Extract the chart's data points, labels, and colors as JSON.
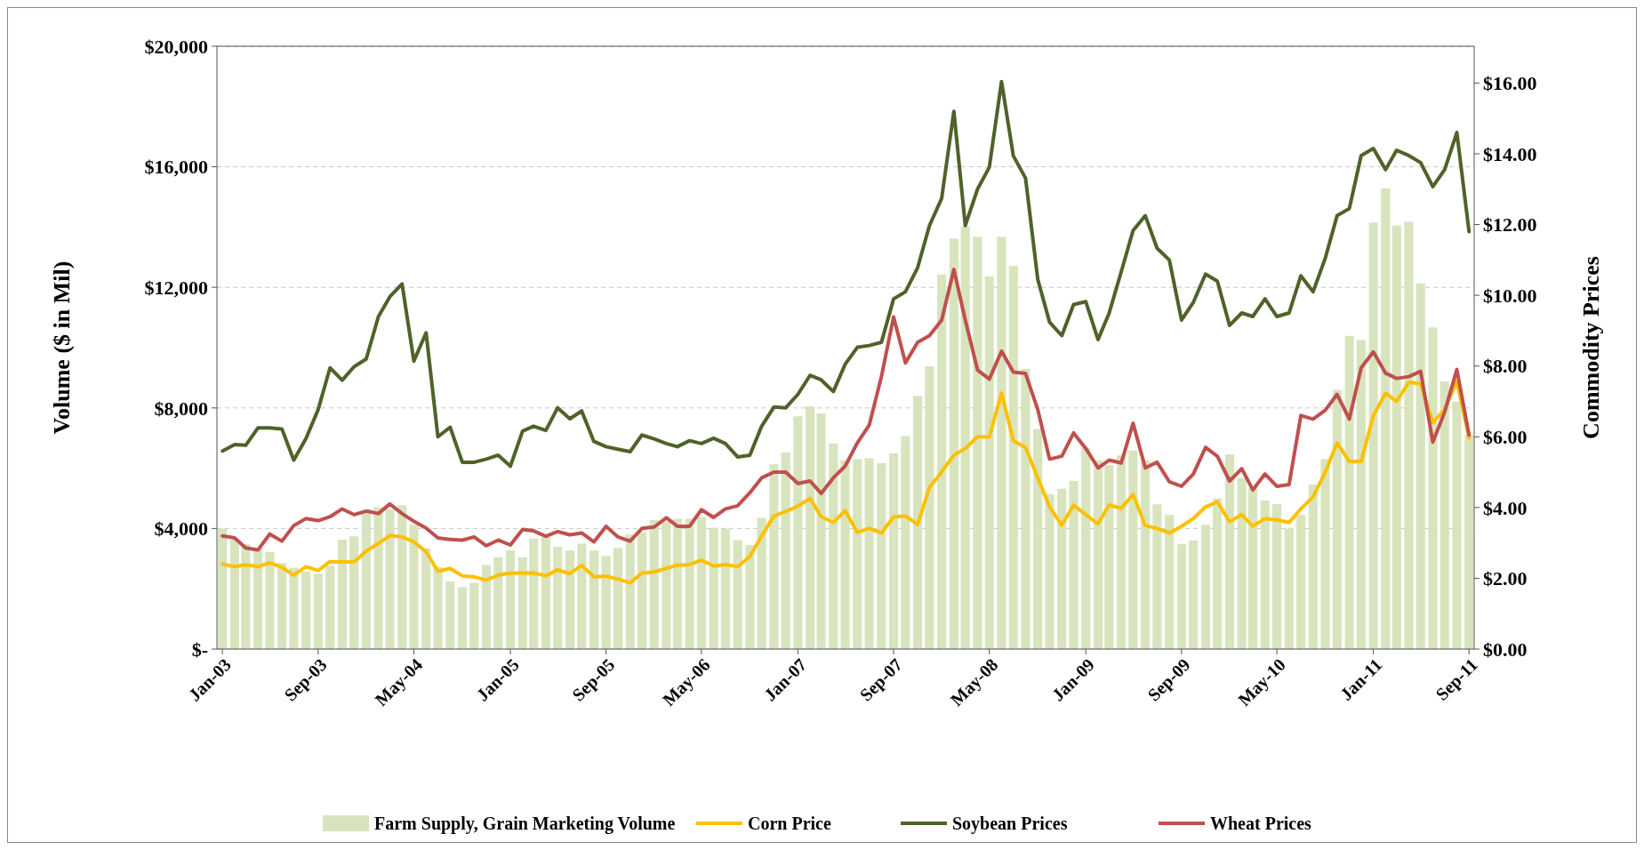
{
  "chart_data": {
    "type": "bar",
    "ylabel": "Volume ($ in Mil)",
    "y2label": "Commodity Prices",
    "x": [
      "2003-01",
      "2003-02",
      "2003-03",
      "2003-04",
      "2003-05",
      "2003-06",
      "2003-07",
      "2003-08",
      "2003-09",
      "2003-10",
      "2003-11",
      "2003-12",
      "2004-01",
      "2004-02",
      "2004-03",
      "2004-04",
      "2004-05",
      "2004-06",
      "2004-07",
      "2004-08",
      "2004-09",
      "2004-10",
      "2004-11",
      "2004-12",
      "2005-01",
      "2005-02",
      "2005-03",
      "2005-04",
      "2005-05",
      "2005-06",
      "2005-07",
      "2005-08",
      "2005-09",
      "2005-10",
      "2005-11",
      "2005-12",
      "2006-01",
      "2006-02",
      "2006-03",
      "2006-04",
      "2006-05",
      "2006-06",
      "2006-07",
      "2006-08",
      "2006-09",
      "2006-10",
      "2006-11",
      "2006-12",
      "2007-01",
      "2007-02",
      "2007-03",
      "2007-04",
      "2007-05",
      "2007-06",
      "2007-07",
      "2007-08",
      "2007-09",
      "2007-10",
      "2007-11",
      "2007-12",
      "2008-01",
      "2008-02",
      "2008-03",
      "2008-04",
      "2008-05",
      "2008-06",
      "2008-07",
      "2008-08",
      "2008-09",
      "2008-10",
      "2008-11",
      "2008-12",
      "2009-01",
      "2009-02",
      "2009-03",
      "2009-04",
      "2009-05",
      "2009-06",
      "2009-07",
      "2009-08",
      "2009-09",
      "2009-10",
      "2009-11",
      "2009-12",
      "2010-01",
      "2010-02",
      "2010-03",
      "2010-04",
      "2010-05",
      "2010-06",
      "2010-07",
      "2010-08",
      "2010-09",
      "2010-10",
      "2010-11",
      "2010-12",
      "2011-01",
      "2011-02",
      "2011-03",
      "2011-04",
      "2011-05",
      "2011-06",
      "2011-07",
      "2011-08",
      "2011-09"
    ],
    "xlim": [
      "2002-12-18",
      "2011-09-14"
    ],
    "xticks": [
      {
        "value": "2003-01",
        "label": "Jan-03"
      },
      {
        "value": "2003-09",
        "label": "Sep-03"
      },
      {
        "value": "2004-05",
        "label": "May-04"
      },
      {
        "value": "2005-01",
        "label": "Jan-05"
      },
      {
        "value": "2005-09",
        "label": "Sep-05"
      },
      {
        "value": "2006-05",
        "label": "May-06"
      },
      {
        "value": "2007-01",
        "label": "Jan-07"
      },
      {
        "value": "2007-09",
        "label": "Sep-07"
      },
      {
        "value": "2008-05",
        "label": "May-08"
      },
      {
        "value": "2009-01",
        "label": "Jan-09"
      },
      {
        "value": "2009-09",
        "label": "Sep-09"
      },
      {
        "value": "2010-05",
        "label": "May-10"
      },
      {
        "value": "2011-01",
        "label": "Jan-11"
      },
      {
        "value": "2011-09",
        "label": "Sep-11"
      }
    ],
    "ylim": [
      0,
      20000
    ],
    "yticks": [
      {
        "value": 0,
        "label": "$-"
      },
      {
        "value": 4000,
        "label": "$4,000"
      },
      {
        "value": 8000,
        "label": "$8,000"
      },
      {
        "value": 12000,
        "label": "$12,000"
      },
      {
        "value": 16000,
        "label": "$16,000"
      },
      {
        "value": 20000,
        "label": "$20,000"
      }
    ],
    "y2lim": [
      0,
      17.04
    ],
    "y2ticks": [
      {
        "value": 0,
        "label": "$0.00"
      },
      {
        "value": 2,
        "label": "$2.00"
      },
      {
        "value": 4,
        "label": "$4.00"
      },
      {
        "value": 6,
        "label": "$6.00"
      },
      {
        "value": 8,
        "label": "$8.00"
      },
      {
        "value": 10,
        "label": "$10.00"
      },
      {
        "value": 12,
        "label": "$12.00"
      },
      {
        "value": 14,
        "label": "$14.00"
      },
      {
        "value": 16,
        "label": "$16.00"
      }
    ],
    "grid": "y",
    "legend": "bottom",
    "marker": "none",
    "line_style": "solid",
    "series": [
      {
        "name": "Farm Supply, Grain Marketing Volume",
        "color": "#d7e4bd",
        "values": [
          4000,
          3630,
          3480,
          3350,
          3220,
          2850,
          2700,
          2570,
          2500,
          2760,
          3630,
          3740,
          4620,
          4710,
          4640,
          4770,
          4120,
          3350,
          2720,
          2240,
          2050,
          2200,
          2790,
          3050,
          3280,
          3050,
          3670,
          3710,
          3390,
          3270,
          3500,
          3270,
          3090,
          3350,
          3800,
          3870,
          4280,
          4230,
          4320,
          4320,
          4380,
          4020,
          3990,
          3610,
          3450,
          4350,
          6130,
          6520,
          7720,
          8050,
          7820,
          6820,
          6260,
          6300,
          6330,
          6170,
          6490,
          7070,
          8400,
          9380,
          12430,
          13620,
          14020,
          13680,
          12360,
          13680,
          12710,
          9290,
          7300,
          5140,
          5320,
          5580,
          6680,
          6260,
          6100,
          6430,
          6590,
          6260,
          4800,
          4450,
          3480,
          3600,
          4120,
          5000,
          6460,
          5680,
          5360,
          4930,
          4810,
          4000,
          4450,
          5460,
          6300,
          8600,
          10390,
          10260,
          14150,
          15280,
          14050,
          14180,
          12130,
          10670,
          8880,
          8210,
          7110
        ]
      },
      {
        "name": "Corn Price",
        "type": "line",
        "axis": "y2",
        "color": "#ffc000",
        "values": [
          2.4,
          2.33,
          2.38,
          2.33,
          2.44,
          2.31,
          2.09,
          2.33,
          2.22,
          2.47,
          2.46,
          2.46,
          2.77,
          2.99,
          3.21,
          3.17,
          3.03,
          2.75,
          2.2,
          2.28,
          2.07,
          2.04,
          1.95,
          2.09,
          2.15,
          2.15,
          2.15,
          2.07,
          2.24,
          2.13,
          2.37,
          2.04,
          2.06,
          1.98,
          1.87,
          2.15,
          2.18,
          2.28,
          2.37,
          2.39,
          2.51,
          2.35,
          2.39,
          2.33,
          2.62,
          3.19,
          3.76,
          3.89,
          4.04,
          4.26,
          3.74,
          3.58,
          3.91,
          3.3,
          3.41,
          3.28,
          3.74,
          3.76,
          3.52,
          4.57,
          5.01,
          5.48,
          5.67,
          6.0,
          6.0,
          7.24,
          5.89,
          5.7,
          4.84,
          4.02,
          3.5,
          4.07,
          3.8,
          3.54,
          4.07,
          3.98,
          4.37,
          3.49,
          3.41,
          3.28,
          3.47,
          3.69,
          4.02,
          4.16,
          3.6,
          3.8,
          3.47,
          3.69,
          3.65,
          3.58,
          3.96,
          4.3,
          5.0,
          5.83,
          5.3,
          5.3,
          6.6,
          7.23,
          7.0,
          7.54,
          7.5,
          6.4,
          6.77,
          7.57,
          5.97
        ]
      },
      {
        "name": "Soybean Prices",
        "type": "line",
        "axis": "y2",
        "color": "#4f6228",
        "values": [
          5.6,
          5.78,
          5.76,
          6.25,
          6.25,
          6.22,
          5.34,
          5.95,
          6.77,
          7.95,
          7.6,
          7.98,
          8.2,
          9.4,
          9.96,
          10.32,
          8.14,
          8.94,
          6.0,
          6.27,
          5.28,
          5.28,
          5.37,
          5.48,
          5.17,
          6.16,
          6.3,
          6.18,
          6.82,
          6.51,
          6.73,
          5.87,
          5.72,
          5.65,
          5.58,
          6.05,
          5.94,
          5.81,
          5.72,
          5.89,
          5.81,
          5.96,
          5.81,
          5.43,
          5.48,
          6.3,
          6.84,
          6.82,
          7.2,
          7.74,
          7.61,
          7.28,
          8.05,
          8.53,
          8.58,
          8.67,
          9.9,
          10.1,
          10.78,
          11.97,
          12.74,
          15.2,
          11.97,
          13.0,
          13.62,
          16.04,
          13.94,
          13.31,
          10.45,
          9.24,
          8.86,
          9.74,
          9.82,
          8.75,
          9.49,
          10.67,
          11.83,
          12.25,
          11.33,
          11.0,
          9.3,
          9.8,
          10.6,
          10.4,
          9.15,
          9.5,
          9.4,
          9.9,
          9.4,
          9.5,
          10.55,
          10.1,
          11.05,
          12.25,
          12.45,
          13.95,
          14.15,
          13.55,
          14.1,
          13.95,
          13.75,
          13.07,
          13.55,
          14.6,
          11.8
        ]
      },
      {
        "name": "Wheat Prices",
        "type": "line",
        "axis": "y2",
        "color": "#c0504d",
        "values": [
          3.2,
          3.14,
          2.86,
          2.8,
          3.25,
          3.05,
          3.49,
          3.69,
          3.63,
          3.74,
          3.96,
          3.8,
          3.9,
          3.83,
          4.1,
          3.83,
          3.61,
          3.42,
          3.14,
          3.1,
          3.08,
          3.17,
          2.92,
          3.08,
          2.94,
          3.38,
          3.34,
          3.19,
          3.32,
          3.23,
          3.28,
          3.03,
          3.47,
          3.17,
          3.05,
          3.41,
          3.45,
          3.71,
          3.47,
          3.47,
          3.94,
          3.72,
          3.96,
          4.05,
          4.42,
          4.84,
          5.0,
          5.0,
          4.68,
          4.75,
          4.4,
          4.84,
          5.17,
          5.83,
          6.33,
          7.7,
          9.39,
          8.09,
          8.67,
          8.86,
          9.3,
          10.73,
          9.3,
          7.89,
          7.63,
          8.42,
          7.83,
          7.79,
          6.77,
          5.37,
          5.45,
          6.11,
          5.67,
          5.12,
          5.34,
          5.26,
          6.38,
          5.12,
          5.28,
          4.73,
          4.6,
          4.95,
          5.7,
          5.45,
          4.75,
          5.1,
          4.5,
          4.95,
          4.6,
          4.65,
          6.6,
          6.5,
          6.75,
          7.2,
          6.5,
          7.95,
          8.4,
          7.8,
          7.65,
          7.7,
          7.85,
          5.85,
          6.7,
          7.9,
          6.05
        ]
      }
    ]
  }
}
